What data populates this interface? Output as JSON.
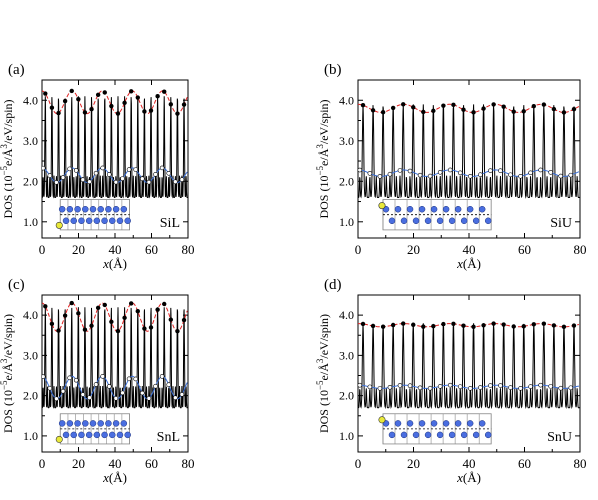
{
  "figure": {
    "ylabel_prefix": "DOS (10",
    "ylabel_exp1": "−5",
    "ylabel_mid": "e/Å",
    "ylabel_exp2": "3",
    "ylabel_suffix": "/eV/spin)",
    "xlabel_var": "x",
    "xlabel_unit": "(Å)"
  },
  "colors": {
    "main_line": "#000000",
    "upper_envelope": "#e02020",
    "lower_envelope": "#3a6fd8",
    "atom_fill": "#4a6ee0",
    "atom_edge": "#1a2f7a",
    "lattice_line": "#888888",
    "dot_line": "#000000",
    "adatom_fill": "#e9e93a"
  },
  "chart_data": [
    {
      "type": "line",
      "panel_label": "(a)",
      "inset_label": "SiL",
      "adatom_position": "lower",
      "x_ticks": [
        "0",
        "20",
        "40",
        "60",
        "80"
      ],
      "y_ticks": [
        "1.0",
        "2.0",
        "3.0",
        "4.0"
      ],
      "xlim": [
        0,
        80
      ],
      "ylim": [
        0.6,
        4.5
      ],
      "series": [
        {
          "role": "DOS",
          "x_range": [
            0,
            80
          ],
          "peak_period": 3.62,
          "peak_height": 4.1,
          "valley": 1.6,
          "secondary_height": 2.2
        },
        {
          "role": "upper envelope",
          "mean": 3.95,
          "amplitude": 0.28,
          "period": 16.5
        },
        {
          "role": "lower envelope",
          "mean": 2.15,
          "amplitude": 0.18,
          "period": 16.5
        }
      ]
    },
    {
      "type": "line",
      "panel_label": "(b)",
      "inset_label": "SiU",
      "adatom_position": "upper",
      "x_ticks": [
        "0",
        "20",
        "40",
        "60",
        "80"
      ],
      "y_ticks": [
        "1.0",
        "2.0",
        "3.0",
        "4.0"
      ],
      "xlim": [
        0,
        80
      ],
      "ylim": [
        0.6,
        4.5
      ],
      "series": [
        {
          "role": "DOS",
          "x_range": [
            0,
            80
          ],
          "peak_period": 3.62,
          "peak_height": 3.9,
          "valley": 1.6,
          "secondary_height": 2.2
        },
        {
          "role": "upper envelope",
          "mean": 3.8,
          "amplitude": 0.1,
          "period": 16.5
        },
        {
          "role": "lower envelope",
          "mean": 2.2,
          "amplitude": 0.08,
          "period": 16.5
        }
      ]
    },
    {
      "type": "line",
      "panel_label": "(c)",
      "inset_label": "SnL",
      "adatom_position": "lower",
      "x_ticks": [
        "0",
        "20",
        "40",
        "60",
        "80"
      ],
      "y_ticks": [
        "1.0",
        "2.0",
        "3.0",
        "4.0"
      ],
      "xlim": [
        0,
        80
      ],
      "ylim": [
        0.6,
        4.5
      ],
      "series": [
        {
          "role": "DOS",
          "x_range": [
            0,
            80
          ],
          "peak_period": 3.62,
          "peak_height": 4.2,
          "valley": 1.7,
          "secondary_height": 2.3
        },
        {
          "role": "upper envelope",
          "mean": 3.95,
          "amplitude": 0.35,
          "period": 16.5
        },
        {
          "role": "lower envelope",
          "mean": 2.2,
          "amplitude": 0.28,
          "period": 16.5
        }
      ]
    },
    {
      "type": "line",
      "panel_label": "(d)",
      "inset_label": "SnU",
      "adatom_position": "upper",
      "x_ticks": [
        "0",
        "20",
        "40",
        "60",
        "80"
      ],
      "y_ticks": [
        "1.0",
        "2.0",
        "3.0",
        "4.0"
      ],
      "xlim": [
        0,
        80
      ],
      "ylim": [
        0.6,
        4.5
      ],
      "series": [
        {
          "role": "DOS",
          "x_range": [
            0,
            80
          ],
          "peak_period": 3.62,
          "peak_height": 3.8,
          "valley": 1.7,
          "secondary_height": 2.25
        },
        {
          "role": "upper envelope",
          "mean": 3.75,
          "amplitude": 0.04,
          "period": 16.5
        },
        {
          "role": "lower envelope",
          "mean": 2.22,
          "amplitude": 0.04,
          "period": 16.5
        }
      ]
    }
  ]
}
